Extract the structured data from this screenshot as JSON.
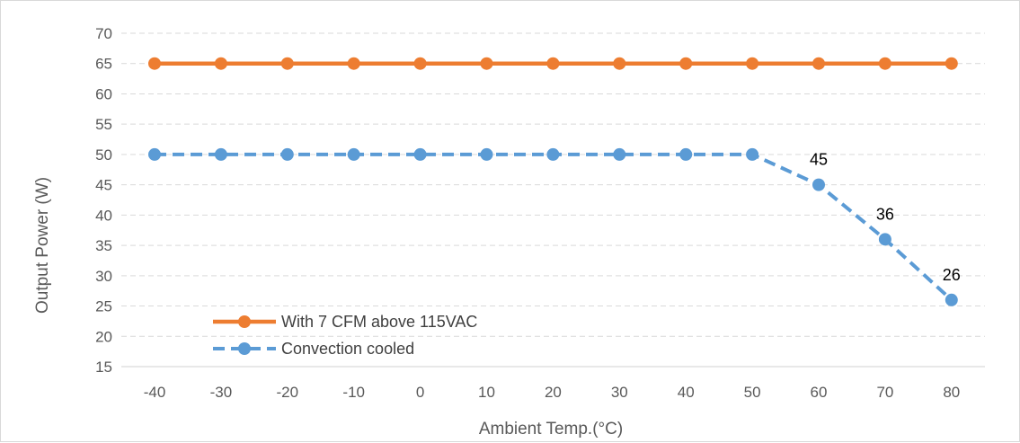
{
  "chart_data": {
    "type": "line",
    "title": "",
    "xlabel": "Ambient Temp.(°C)",
    "ylabel": "Output  Power (W)",
    "categories": [
      "-40",
      "-30",
      "-20",
      "-10",
      "0",
      "10",
      "20",
      "30",
      "40",
      "50",
      "60",
      "70",
      "80"
    ],
    "ylim": [
      15,
      70
    ],
    "yticks": [
      15,
      20,
      25,
      30,
      35,
      40,
      45,
      50,
      55,
      60,
      65,
      70
    ],
    "grid": "horizontal dashed",
    "legend_position": "lower-left inside",
    "series": [
      {
        "name": "With 7 CFM above 115VAC",
        "color": "#ed7d31",
        "line_style": "solid",
        "values": [
          65,
          65,
          65,
          65,
          65,
          65,
          65,
          65,
          65,
          65,
          65,
          65,
          65
        ]
      },
      {
        "name": "Convection cooled",
        "color": "#5b9bd5",
        "line_style": "dashed",
        "values": [
          50,
          50,
          50,
          50,
          50,
          50,
          50,
          50,
          50,
          50,
          45,
          36,
          26
        ],
        "data_labels": [
          "",
          "",
          "",
          "",
          "",
          "",
          "",
          "",
          "",
          "",
          "45",
          "36",
          "26"
        ]
      }
    ]
  }
}
